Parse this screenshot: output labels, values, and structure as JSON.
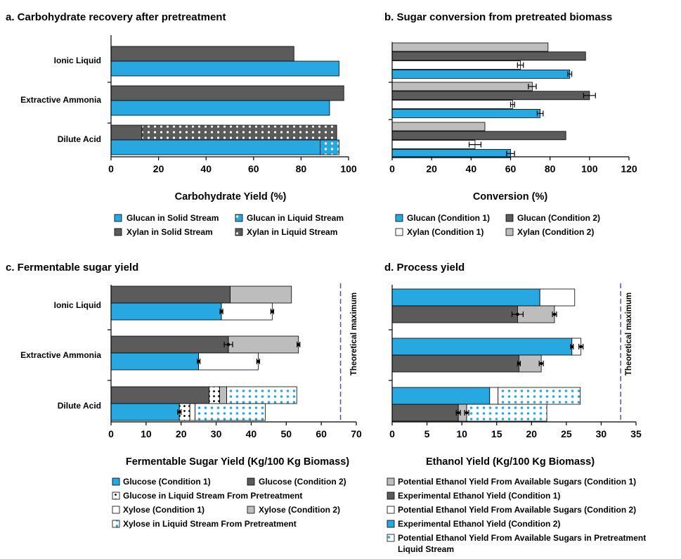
{
  "colors": {
    "glucan_solid": "#27a8e0",
    "xylan_solid": "#5b5b5b",
    "light_gray": "#bdbdbd",
    "white": "#ffffff",
    "dots_dark": "#5b5b5b",
    "dots_white": "#ffffff",
    "dots_blue": "#27a8e0",
    "theoretical_line": "#5a4fa8"
  },
  "chart_data": [
    {
      "id": "a",
      "type": "bar",
      "orientation": "horizontal",
      "stacked": true,
      "title": "a. Carbohydrate recovery after pretreatment",
      "xlabel": "Carbohydrate Yield (%)",
      "categories": [
        "Ionic Liquid",
        "Extractive Ammonia",
        "Dilute Acid"
      ],
      "xlim": [
        0,
        100
      ],
      "xticks": [
        "0",
        "20",
        "40",
        "60",
        "80",
        "100"
      ],
      "rows": [
        {
          "segments": [
            {
              "key": "xs",
              "values": [
                77,
                98,
                13
              ]
            },
            {
              "key": "xl",
              "values": [
                0,
                0,
                82
              ]
            }
          ]
        },
        {
          "segments": [
            {
              "key": "gs",
              "values": [
                96,
                92,
                88
              ]
            },
            {
              "key": "gl",
              "values": [
                0,
                0,
                8
              ]
            }
          ]
        }
      ],
      "legend": [
        {
          "key": "gs",
          "label": "Glucan in Solid Stream"
        },
        {
          "key": "gl",
          "label": "Glucan in Liquid Stream"
        },
        {
          "key": "xs",
          "label": "Xylan in Solid Stream"
        },
        {
          "key": "xl",
          "label": "Xylan in Liquid Stream"
        }
      ]
    },
    {
      "id": "b",
      "type": "bar",
      "orientation": "horizontal",
      "title": "b. Sugar conversion from pretreated biomass",
      "xlabel": "Conversion (%)",
      "xlim": [
        0,
        120
      ],
      "xticks": [
        "0",
        "20",
        "40",
        "60",
        "80",
        "100",
        "120"
      ],
      "groups": [
        {
          "bars": [
            {
              "key": "x2",
              "value": 79
            },
            {
              "key": "g2",
              "value": 98
            },
            {
              "key": "x1",
              "value": 65,
              "err": 1.5
            },
            {
              "key": "g1",
              "value": 90,
              "err": 1
            }
          ]
        },
        {
          "bars": [
            {
              "key": "x2",
              "value": 71,
              "err": 2
            },
            {
              "key": "g2",
              "value": 100,
              "err": 3
            },
            {
              "key": "x1",
              "value": 61,
              "err": 1
            },
            {
              "key": "g1",
              "value": 75,
              "err": 1.5
            }
          ]
        },
        {
          "bars": [
            {
              "key": "x2",
              "value": 47
            },
            {
              "key": "g2",
              "value": 88
            },
            {
              "key": "x1",
              "value": 42,
              "err": 3
            },
            {
              "key": "g1",
              "value": 60,
              "err": 2
            }
          ]
        }
      ],
      "legend": [
        {
          "key": "g1",
          "label": "Glucan (Condition 1)"
        },
        {
          "key": "g2",
          "label": "Glucan (Condition 2)"
        },
        {
          "key": "x1",
          "label": "Xylan (Condition 1)"
        },
        {
          "key": "x2",
          "label": "Xylan (Condition 2)"
        }
      ]
    },
    {
      "id": "c",
      "type": "bar",
      "orientation": "horizontal",
      "stacked": true,
      "title": "c. Fermentable sugar yield",
      "xlabel": "Fermentable Sugar Yield (Kg/100 Kg Biomass)",
      "categories": [
        "Ionic Liquid",
        "Extractive Ammonia",
        "Dilute Acid"
      ],
      "xlim": [
        0,
        70
      ],
      "xticks": [
        "0",
        "10",
        "20",
        "30",
        "40",
        "50",
        "60",
        "70"
      ],
      "theoretical_max": 65.5,
      "theoretical_label": "Theoretical maximum",
      "rows": [
        {
          "segments": [
            {
              "key": "g2",
              "values": [
                34,
                33.5,
                28
              ]
            },
            {
              "key": "gliq",
              "values": [
                0,
                0,
                3
              ]
            },
            {
              "key": "x2",
              "values": [
                17.5,
                20,
                2
              ]
            },
            {
              "key": "xliq",
              "values": [
                0,
                0,
                20
              ]
            }
          ],
          "errs": [
            [
              34,
              null
            ],
            [
              33.5,
              1.2
            ],
            [
              28,
              null
            ]
          ],
          "ends": [
            51.5,
            53.5,
            53
          ],
          "end_errs": [
            null,
            0.4,
            null
          ]
        },
        {
          "segments": [
            {
              "key": "g1",
              "values": [
                31.5,
                25,
                19.5
              ]
            },
            {
              "key": "gliq",
              "values": [
                0,
                0,
                3
              ]
            },
            {
              "key": "x1",
              "values": [
                14.5,
                17,
                1.5
              ]
            },
            {
              "key": "xliq",
              "values": [
                0,
                0,
                20
              ]
            }
          ],
          "errs": [
            [
              31.5,
              0.4
            ],
            [
              25,
              0.4
            ],
            [
              19.5,
              0.5
            ]
          ],
          "ends": [
            46,
            42,
            44
          ],
          "end_errs": [
            0.4,
            0.4,
            null
          ]
        }
      ],
      "legend": [
        {
          "key": "g1",
          "label": "Glucose (Condition 1)"
        },
        {
          "key": "g2",
          "label": "Glucose (Condition 2)"
        },
        {
          "key": "gliq",
          "label": "Glucose in Liquid Stream From Pretreatment"
        },
        {
          "key": "x1",
          "label": "Xylose (Condition 1)"
        },
        {
          "key": "x2",
          "label": "Xylose (Condition 2)"
        },
        {
          "key": "xliq",
          "label": "Xylose in Liquid Stream From Pretreatment"
        }
      ]
    },
    {
      "id": "d",
      "type": "bar",
      "orientation": "horizontal",
      "stacked": true,
      "title": "d. Process yield",
      "xlabel": "Ethanol Yield (Kg/100 Kg Biomass)",
      "categories": [
        "Ionic Liquid",
        "Extractive Ammonia",
        "Dilute Acid"
      ],
      "xlim": [
        0,
        35
      ],
      "xticks": [
        "0",
        "5",
        "10",
        "15",
        "20",
        "25",
        "30",
        "35"
      ],
      "theoretical_max": 32.8,
      "theoretical_label": "Theoretical maximum",
      "groups": [
        {
          "bars": [
            {
              "segments": [
                {
                  "key": "exp2",
                  "value": 21.2
                },
                {
                  "key": "pot2",
                  "value": 5
                }
              ],
              "err_at": [],
              "err_end": null
            },
            {
              "segments": [
                {
                  "key": "exp1",
                  "value": 18
                },
                {
                  "key": "pot1",
                  "value": 5.3
                }
              ],
              "errs": [
                [
                  18,
                  0.8
                ]
              ],
              "end_err": 0.3
            }
          ]
        },
        {
          "bars": [
            {
              "segments": [
                {
                  "key": "exp2",
                  "value": 25.8
                },
                {
                  "key": "pot2",
                  "value": 1.3
                }
              ],
              "errs": [
                [
                  25.8,
                  0.2
                ]
              ],
              "end_err": 0.3
            },
            {
              "segments": [
                {
                  "key": "exp1",
                  "value": 18.2
                },
                {
                  "key": "pot1",
                  "value": 3.2
                }
              ],
              "errs": [
                [
                  18.2,
                  0.2
                ]
              ],
              "end_err": 0.3
            }
          ]
        },
        {
          "bars": [
            {
              "segments": [
                {
                  "key": "exp2",
                  "value": 14
                },
                {
                  "key": "pot2",
                  "value": 1.2
                },
                {
                  "key": "potliq",
                  "value": 11.8
                }
              ],
              "errs": [],
              "end_err": null
            },
            {
              "segments": [
                {
                  "key": "exp1",
                  "value": 9.5
                },
                {
                  "key": "pot1",
                  "value": 1.2
                },
                {
                  "key": "potliq",
                  "value": 11.5
                }
              ],
              "errs": [
                [
                  9.5,
                  0.3
                ],
                [
                  10.7,
                  0.3
                ]
              ],
              "end_err": null
            }
          ]
        }
      ],
      "legend": [
        {
          "key": "pot1",
          "label": "Potential Ethanol Yield From Available Sugars (Condition 1)"
        },
        {
          "key": "exp1",
          "label": "Experimental Ethanol Yield (Condition 1)"
        },
        {
          "key": "pot2",
          "label": "Potential Ethanol Yield From Available Sugars (Condition 2)"
        },
        {
          "key": "exp2",
          "label": "Experimental Ethanol Yield (Condition 2)"
        },
        {
          "key": "potliq",
          "label": "Potential Ethanol Yield From Available Sugars in Pretreatment Liquid Stream"
        }
      ]
    }
  ]
}
